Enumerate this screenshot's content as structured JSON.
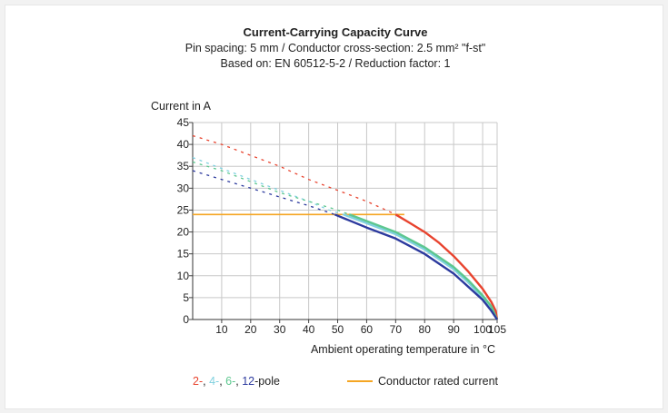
{
  "chart_data": {
    "type": "line",
    "title": "Current-Carrying Capacity Curve",
    "subtitle": "Pin spacing: 5 mm / Conductor cross-section: 2.5 mm² \"f-st\"",
    "subtitle2": "Based on: EN 60512-5-2 / Reduction factor: 1",
    "ylabel": "Current in A",
    "xlabel": "Ambient operating temperature in °C",
    "xlim": [
      0,
      105
    ],
    "ylim": [
      0,
      45
    ],
    "xticks": [
      "10",
      "20",
      "30",
      "40",
      "50",
      "60",
      "70",
      "80",
      "90",
      "100",
      "105"
    ],
    "yticks": [
      "0",
      "5",
      "10",
      "15",
      "20",
      "25",
      "30",
      "35",
      "40",
      "45"
    ],
    "grid": true,
    "series": [
      {
        "name": "2-",
        "color": "#e8432e",
        "dashed": [
          [
            0,
            42
          ],
          [
            10,
            40
          ],
          [
            20,
            37.5
          ],
          [
            30,
            35
          ],
          [
            40,
            32
          ],
          [
            50,
            29.5
          ],
          [
            60,
            27
          ],
          [
            65,
            25.5
          ],
          [
            70,
            24
          ]
        ],
        "solid": [
          [
            70,
            24
          ],
          [
            75,
            22
          ],
          [
            80,
            20
          ],
          [
            85,
            17.5
          ],
          [
            90,
            14.5
          ],
          [
            95,
            11
          ],
          [
            100,
            7
          ],
          [
            103,
            4
          ],
          [
            104.5,
            2
          ],
          [
            105,
            0
          ]
        ]
      },
      {
        "name": "4-",
        "color": "#7fd0df",
        "dashed": [
          [
            0,
            37
          ],
          [
            10,
            34.5
          ],
          [
            20,
            32
          ],
          [
            30,
            29.5
          ],
          [
            40,
            27
          ],
          [
            47,
            25
          ],
          [
            52,
            24
          ]
        ],
        "solid": [
          [
            52,
            24
          ],
          [
            60,
            22
          ],
          [
            70,
            19.5
          ],
          [
            80,
            16
          ],
          [
            90,
            11.5
          ],
          [
            95,
            8.5
          ],
          [
            100,
            5
          ],
          [
            103,
            2.5
          ],
          [
            105,
            0
          ]
        ]
      },
      {
        "name": "6-",
        "color": "#5dc78f",
        "dashed": [
          [
            0,
            36
          ],
          [
            10,
            34
          ],
          [
            20,
            31.5
          ],
          [
            30,
            29
          ],
          [
            40,
            27
          ],
          [
            50,
            25
          ],
          [
            54,
            24
          ]
        ],
        "solid": [
          [
            54,
            24
          ],
          [
            60,
            22.5
          ],
          [
            70,
            20
          ],
          [
            80,
            16.5
          ],
          [
            90,
            12
          ],
          [
            95,
            9
          ],
          [
            100,
            5.5
          ],
          [
            103,
            3
          ],
          [
            105,
            0
          ]
        ]
      },
      {
        "name": "12",
        "color": "#2c3a9e",
        "dashed": [
          [
            0,
            34
          ],
          [
            10,
            32
          ],
          [
            20,
            30
          ],
          [
            30,
            28
          ],
          [
            40,
            26
          ],
          [
            49,
            24
          ]
        ],
        "solid": [
          [
            49,
            24
          ],
          [
            60,
            21
          ],
          [
            70,
            18.5
          ],
          [
            80,
            15
          ],
          [
            90,
            10.5
          ],
          [
            95,
            7.5
          ],
          [
            100,
            4.5
          ],
          [
            103,
            2
          ],
          [
            105,
            0
          ]
        ]
      }
    ],
    "rated_current": {
      "name": "Conductor rated current",
      "color": "#f5a623",
      "value": 24,
      "x_end": 73
    },
    "legend": {
      "separator": ", ",
      "suffix": "-pole",
      "placement": "bottom"
    }
  }
}
